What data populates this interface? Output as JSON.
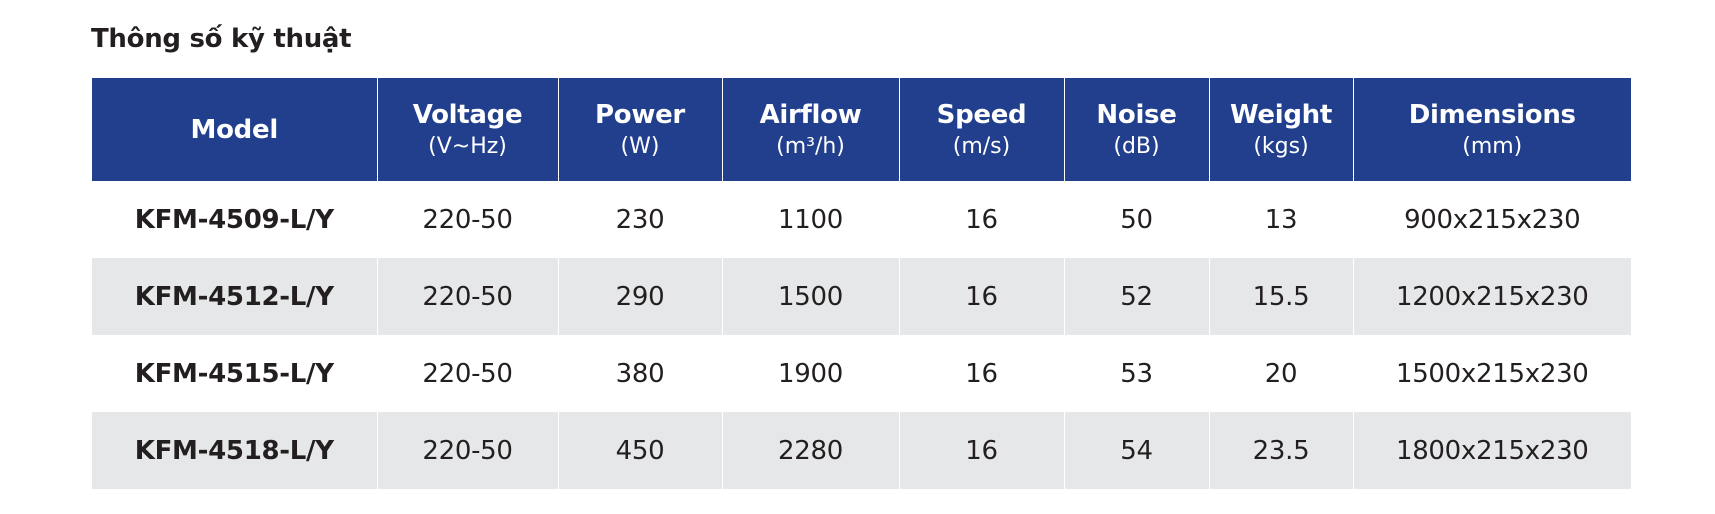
{
  "header": {
    "title": "Thông số kỹ thuật"
  },
  "table": {
    "columns": [
      {
        "name": "Model"
      },
      {
        "name": "Voltage",
        "unit": "(V~Hz)"
      },
      {
        "name": "Power",
        "unit": "(W)"
      },
      {
        "name": "Airflow",
        "unit": "(m³/h)"
      },
      {
        "name": "Speed",
        "unit": "(m/s)"
      },
      {
        "name": "Noise",
        "unit": "(dB)"
      },
      {
        "name": "Weight",
        "unit": "(kgs)"
      },
      {
        "name": "Dimensions",
        "unit": "(mm)"
      }
    ],
    "rows": [
      [
        "KFM-4509-L/Y",
        "220-50",
        "230",
        "1100",
        "16",
        "50",
        "13",
        "900x215x230"
      ],
      [
        "KFM-4512-L/Y",
        "220-50",
        "290",
        "1500",
        "16",
        "52",
        "15.5",
        "1200x215x230"
      ],
      [
        "KFM-4515-L/Y",
        "220-50",
        "380",
        "1900",
        "16",
        "53",
        "20",
        "1500x215x230"
      ],
      [
        "KFM-4518-L/Y",
        "220-50",
        "450",
        "2280",
        "16",
        "54",
        "23.5",
        "1800x215x230"
      ]
    ]
  }
}
